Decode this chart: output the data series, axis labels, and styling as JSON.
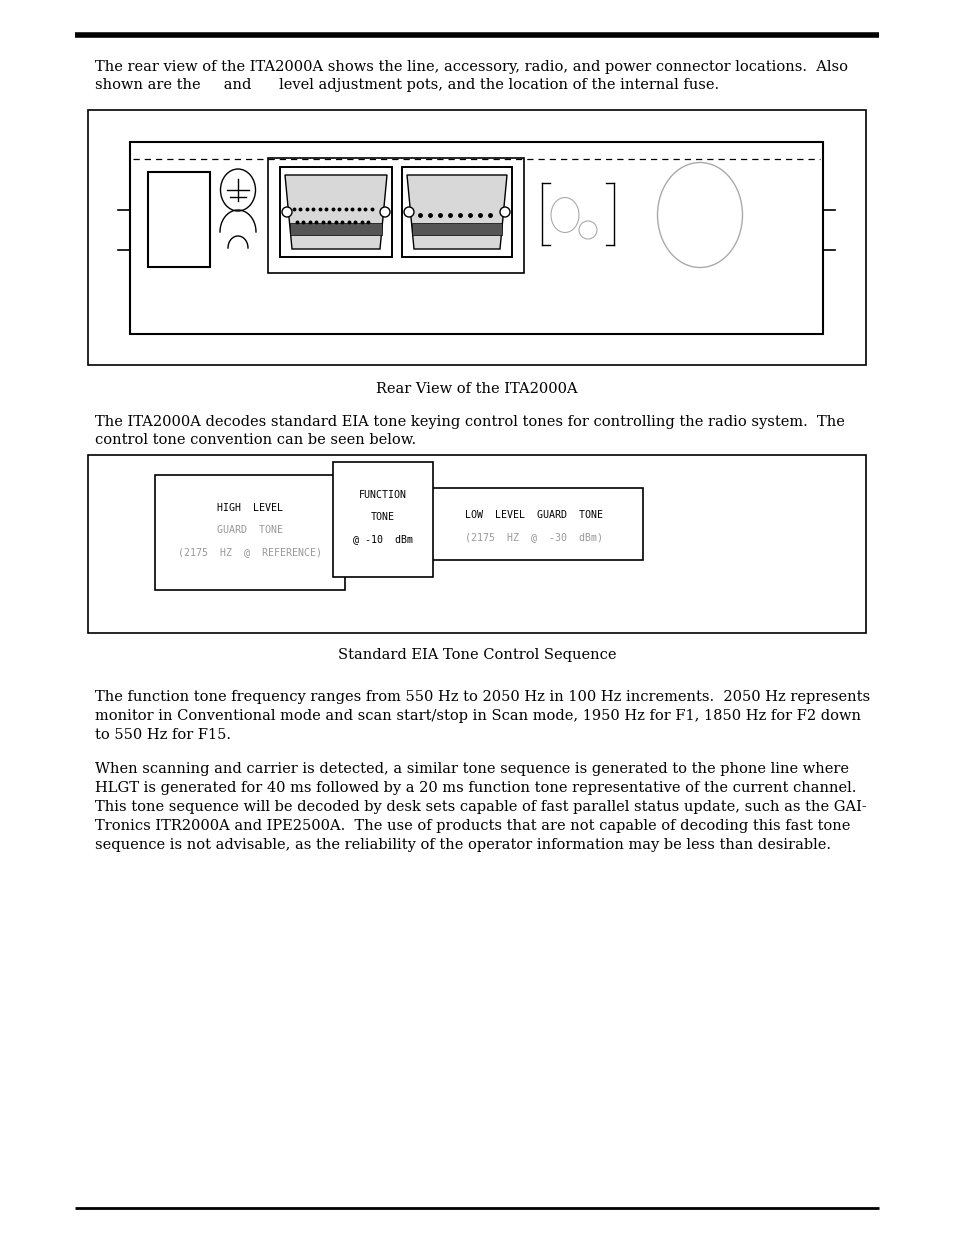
{
  "page_bg": "#ffffff",
  "text_color": "#000000",
  "para1_l1": "The rear view of the ITA2000A shows the line, accessory, radio, and power connector locations.  Also",
  "para1_l2": "shown are the     and      level adjustment pots, and the location of the internal fuse.",
  "rear_view_caption": "Rear View of the ITA2000A",
  "para2_l1": "The ITA2000A decodes standard EIA tone keying control tones for controlling the radio system.  The",
  "para2_l2": "control tone convention can be seen below.",
  "tone_diagram_caption": "Standard EIA Tone Control Sequence",
  "box1_l1": "HIGH  LEVEL",
  "box1_l2": "GUARD  TONE",
  "box1_l3": "(2175  HZ  @  REFERENCE)",
  "box2_l1": "FUNCTION",
  "box2_l2": "TONE",
  "box2_l3": "@ -10  dBm",
  "box3_l1": "LOW  LEVEL  GUARD  TONE",
  "box3_l2": "(2175  HZ  @  -30  dBm)",
  "para3_l1": "The function tone frequency ranges from 550 Hz to 2050 Hz in 100 Hz increments.  2050 Hz represents",
  "para3_l2": "monitor in Conventional mode and scan start/stop in Scan mode, 1950 Hz for F1, 1850 Hz for F2 down",
  "para3_l3": "to 550 Hz for F15.",
  "para4_l1": "When scanning and carrier is detected, a similar tone sequence is generated to the phone line where",
  "para4_l2": "HLGT is generated for 40 ms followed by a 20 ms function tone representative of the current channel.",
  "para4_l3": "This tone sequence will be decoded by desk sets capable of fast parallel status update, such as the GAI-",
  "para4_l4": "Tronics ITR2000A and IPE2500A.  The use of products that are not capable of decoding this fast tone",
  "para4_l5": "sequence is not advisable, as the reliability of the operator information may be less than desirable.",
  "font_body": 10.5,
  "font_caption": 10.5,
  "font_diagram": 7.2,
  "gray_text": "#999999"
}
